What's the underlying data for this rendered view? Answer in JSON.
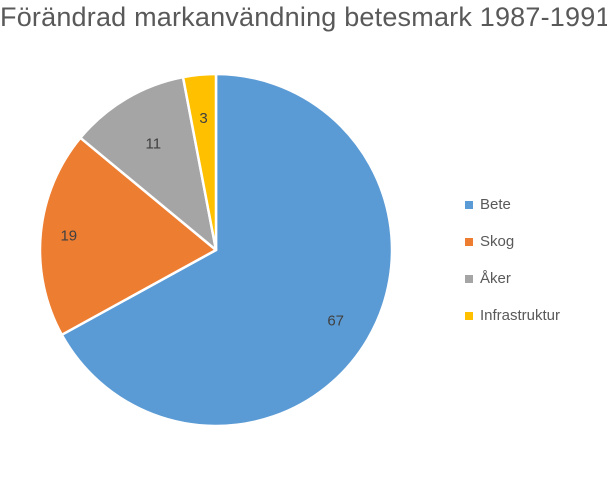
{
  "chart_data": {
    "type": "pie",
    "title": "Förändrad markanvändning betesmark 1987-1991",
    "categories": [
      "Bete",
      "Skog",
      "Åker",
      "Infrastruktur"
    ],
    "values": [
      67,
      19,
      11,
      3
    ],
    "colors": [
      "#5B9BD5",
      "#ED7D31",
      "#A5A5A5",
      "#FFC000"
    ],
    "data_labels": [
      "67",
      "19",
      "11",
      "3"
    ],
    "legend_position": "right",
    "start_angle": "12 o'clock",
    "direction": "clockwise"
  }
}
